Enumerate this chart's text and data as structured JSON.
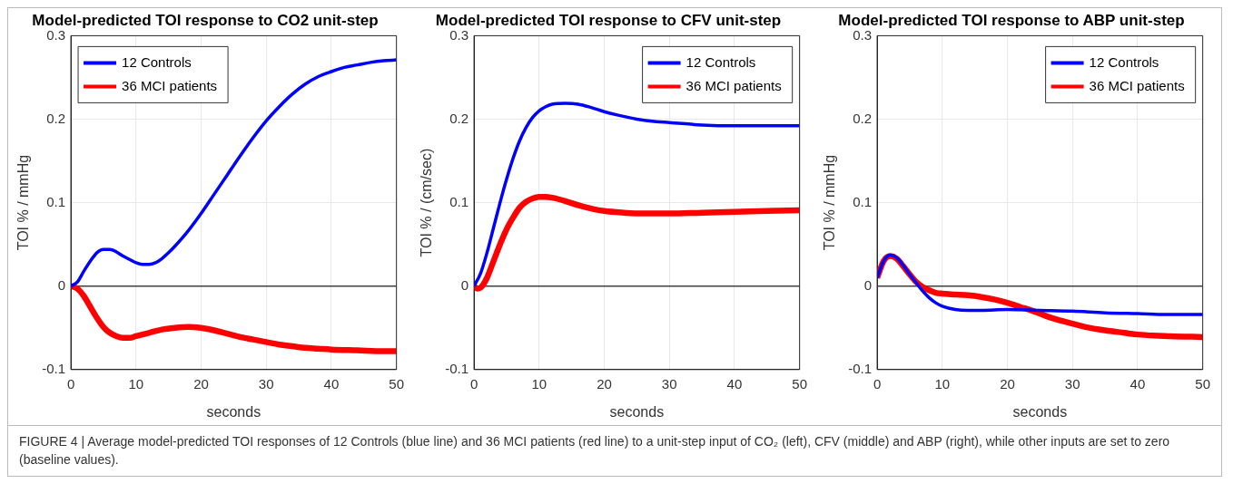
{
  "chart_data": [
    {
      "type": "line",
      "title": "Model-predicted TOI response to CO2 unit-step",
      "xlabel": "seconds",
      "ylabel": "TOI % / mmHg",
      "xlim": [
        0,
        50
      ],
      "xticks": [
        0,
        10,
        20,
        30,
        40,
        50
      ],
      "ylim": [
        -0.1,
        0.3
      ],
      "yticks": [
        -0.1,
        0,
        0.1,
        0.2,
        0.3
      ],
      "grid": true,
      "legend": "top left",
      "ref_lines": [
        {
          "axis": "y",
          "value": 0,
          "color": "#404040"
        }
      ],
      "series": [
        {
          "name": "12 Controls",
          "color": "#0000ff",
          "x": [
            0,
            1,
            2,
            3,
            4,
            5,
            6,
            7,
            8,
            9,
            10,
            11,
            12,
            13,
            14,
            15,
            16,
            18,
            20,
            22,
            24,
            26,
            28,
            30,
            32,
            34,
            36,
            38,
            40,
            42,
            44,
            46,
            48,
            50
          ],
          "values": [
            0,
            0.005,
            0.018,
            0.03,
            0.04,
            0.044,
            0.044,
            0.041,
            0.036,
            0.032,
            0.028,
            0.026,
            0.026,
            0.028,
            0.033,
            0.04,
            0.048,
            0.066,
            0.087,
            0.11,
            0.133,
            0.156,
            0.178,
            0.198,
            0.215,
            0.23,
            0.242,
            0.251,
            0.257,
            0.262,
            0.265,
            0.268,
            0.27,
            0.271
          ]
        },
        {
          "name": "36 MCI patients",
          "color": "#ff0000",
          "x": [
            0,
            1,
            2,
            3,
            4,
            5,
            6,
            7,
            8,
            9,
            10,
            12,
            14,
            16,
            18,
            20,
            22,
            24,
            26,
            28,
            30,
            32,
            34,
            36,
            38,
            40,
            44,
            48,
            50
          ],
          "values": [
            0,
            -0.003,
            -0.012,
            -0.025,
            -0.038,
            -0.049,
            -0.056,
            -0.06,
            -0.062,
            -0.062,
            -0.06,
            -0.056,
            -0.052,
            -0.05,
            -0.049,
            -0.05,
            -0.053,
            -0.057,
            -0.061,
            -0.064,
            -0.067,
            -0.07,
            -0.072,
            -0.074,
            -0.075,
            -0.076,
            -0.077,
            -0.078,
            -0.078
          ]
        }
      ]
    },
    {
      "type": "line",
      "title": "Model-predicted TOI response to CFV unit-step",
      "xlabel": "seconds",
      "ylabel": "TOI % / (cm/sec)",
      "xlim": [
        0,
        50
      ],
      "xticks": [
        0,
        10,
        20,
        30,
        40,
        50
      ],
      "ylim": [
        -0.1,
        0.3
      ],
      "yticks": [
        -0.1,
        0,
        0.1,
        0.2,
        0.3
      ],
      "grid": true,
      "legend": "top right",
      "ref_lines": [
        {
          "axis": "y",
          "value": 0,
          "color": "#404040"
        }
      ],
      "series": [
        {
          "name": "12 Controls",
          "color": "#0000ff",
          "x": [
            0,
            1,
            2,
            3,
            4,
            5,
            6,
            7,
            8,
            9,
            10,
            11,
            12,
            14,
            16,
            18,
            20,
            22,
            25,
            28,
            30,
            35,
            40,
            45,
            50
          ],
          "values": [
            0,
            0.015,
            0.04,
            0.07,
            0.1,
            0.128,
            0.153,
            0.174,
            0.19,
            0.202,
            0.21,
            0.215,
            0.218,
            0.219,
            0.218,
            0.214,
            0.209,
            0.205,
            0.2,
            0.197,
            0.196,
            0.193,
            0.192,
            0.192,
            0.192
          ]
        },
        {
          "name": "36 MCI patients",
          "color": "#ff0000",
          "x": [
            0,
            0.5,
            1,
            2,
            3,
            4,
            5,
            6,
            7,
            8,
            9,
            10,
            11,
            12,
            14,
            16,
            18,
            20,
            23,
            26,
            30,
            35,
            40,
            45,
            50
          ],
          "values": [
            0,
            -0.003,
            -0.002,
            0.01,
            0.03,
            0.05,
            0.068,
            0.082,
            0.094,
            0.101,
            0.105,
            0.107,
            0.107,
            0.106,
            0.102,
            0.097,
            0.093,
            0.09,
            0.088,
            0.087,
            0.087,
            0.088,
            0.089,
            0.09,
            0.091
          ]
        }
      ]
    },
    {
      "type": "line",
      "title": "Model-predicted TOI response to ABP unit-step",
      "xlabel": "seconds",
      "ylabel": "TOI % / mmHg",
      "xlim": [
        0,
        50
      ],
      "xticks": [
        0,
        10,
        20,
        30,
        40,
        50
      ],
      "ylim": [
        -0.1,
        0.3
      ],
      "yticks": [
        -0.1,
        0,
        0.1,
        0.2,
        0.3
      ],
      "grid": true,
      "legend": "top right",
      "ref_lines": [
        {
          "axis": "y",
          "value": 0,
          "color": "#404040"
        }
      ],
      "series": [
        {
          "name": "12 Controls",
          "color": "#0000ff",
          "x": [
            0,
            1,
            2,
            3,
            4,
            5,
            6,
            7,
            8,
            9,
            10,
            12,
            14,
            16,
            20,
            25,
            30,
            35,
            40,
            45,
            50
          ],
          "values": [
            0.01,
            0.03,
            0.037,
            0.034,
            0.025,
            0.014,
            0.004,
            -0.006,
            -0.014,
            -0.02,
            -0.024,
            -0.028,
            -0.029,
            -0.029,
            -0.028,
            -0.029,
            -0.03,
            -0.032,
            -0.033,
            -0.034,
            -0.034
          ]
        },
        {
          "name": "36 MCI patients",
          "color": "#ff0000",
          "x": [
            0,
            1,
            2,
            3,
            4,
            5,
            6,
            7,
            8,
            9,
            10,
            12,
            14,
            16,
            18,
            20,
            22,
            24,
            26,
            28,
            30,
            32,
            35,
            38,
            40,
            45,
            50
          ],
          "values": [
            0.01,
            0.03,
            0.036,
            0.033,
            0.024,
            0.014,
            0.005,
            -0.001,
            -0.005,
            -0.008,
            -0.009,
            -0.01,
            -0.011,
            -0.013,
            -0.016,
            -0.02,
            -0.025,
            -0.03,
            -0.036,
            -0.041,
            -0.045,
            -0.049,
            -0.053,
            -0.056,
            -0.058,
            -0.06,
            -0.061
          ]
        }
      ]
    },
    {
      "type": "other",
      "annotations": [
        "FIGURE 4 | Average model-predicted TOI responses of 12 Controls (blue line) and 36 MCI patients (red line) to a unit-step input of CO₂ (left), CFV (middle) and ABP (right), while other inputs are set to zero (baseline values)."
      ]
    }
  ]
}
